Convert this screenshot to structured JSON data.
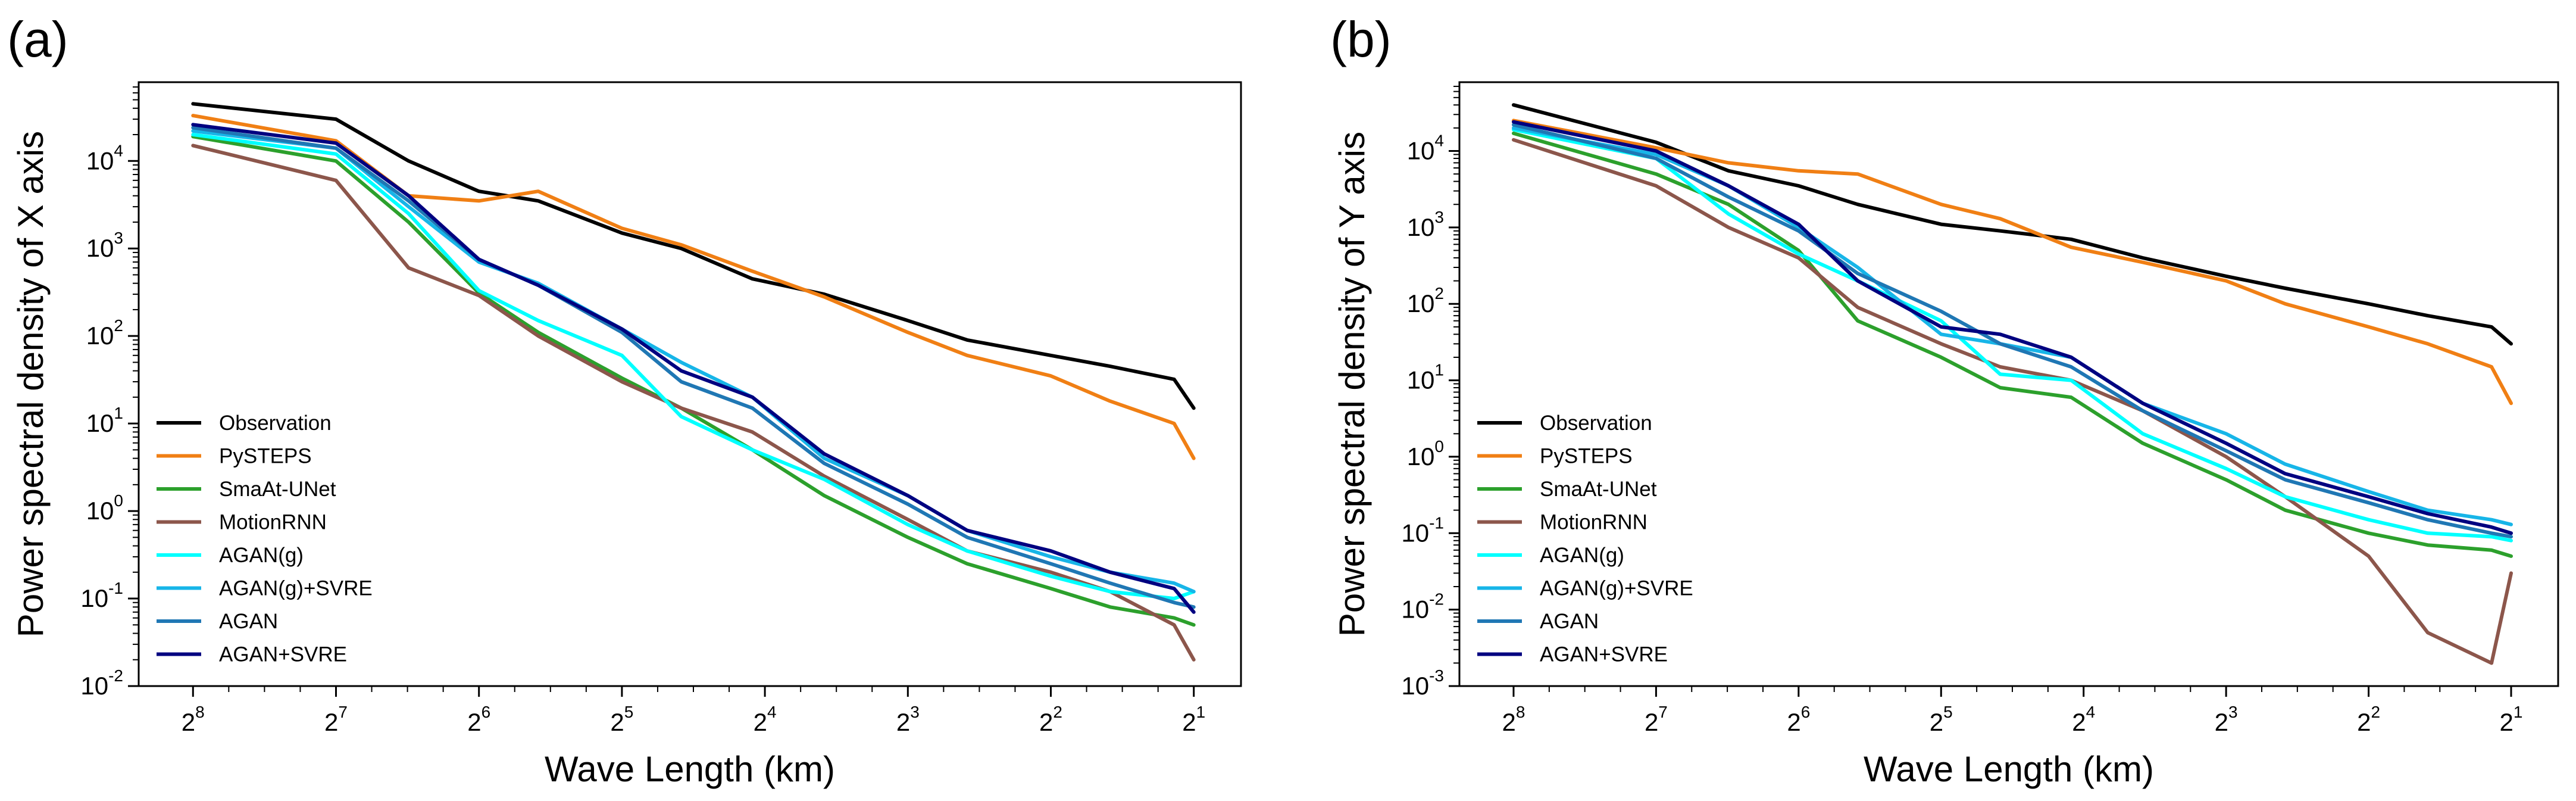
{
  "chart_data": [
    {
      "panel": "(a)",
      "type": "line",
      "xscale": "log2 (reversed)",
      "yscale": "log10",
      "xlabel": "Wave Length (km)",
      "ylabel": "Power spectral density of X axis",
      "x_ticks": [
        {
          "base": "2",
          "exp": "8",
          "value": 256
        },
        {
          "base": "2",
          "exp": "7",
          "value": 128
        },
        {
          "base": "2",
          "exp": "6",
          "value": 64
        },
        {
          "base": "2",
          "exp": "5",
          "value": 32
        },
        {
          "base": "2",
          "exp": "4",
          "value": 16
        },
        {
          "base": "2",
          "exp": "3",
          "value": 8
        },
        {
          "base": "2",
          "exp": "2",
          "value": 4
        },
        {
          "base": "2",
          "exp": "1",
          "value": 2
        }
      ],
      "y_ticks": [
        {
          "base": "10",
          "exp": "4",
          "value": 10000
        },
        {
          "base": "10",
          "exp": "3",
          "value": 1000
        },
        {
          "base": "10",
          "exp": "2",
          "value": 100
        },
        {
          "base": "10",
          "exp": "1",
          "value": 10
        },
        {
          "base": "10",
          "exp": "0",
          "value": 1
        },
        {
          "base": "10",
          "exp": "-1",
          "value": 0.1
        },
        {
          "base": "10",
          "exp": "-2",
          "value": 0.01
        }
      ],
      "legend_location": "lower-left",
      "x": [
        256,
        128,
        90,
        64,
        48,
        32,
        24,
        17,
        12,
        8,
        6,
        4,
        3,
        2.2,
        2
      ],
      "series": [
        {
          "name": "Observation",
          "color": "#000000",
          "values": [
            45000,
            30000,
            10000,
            4500,
            3500,
            1500,
            1000,
            450,
            300,
            150,
            90,
            60,
            45,
            32,
            15
          ]
        },
        {
          "name": "PySTEPS",
          "color": "#f07f14",
          "values": [
            33000,
            17000,
            4000,
            3500,
            4500,
            1700,
            1100,
            550,
            280,
            110,
            60,
            35,
            18,
            10,
            4
          ]
        },
        {
          "name": "SmaAt-UNet",
          "color": "#2ca02c",
          "values": [
            19000,
            10000,
            2000,
            310,
            110,
            33,
            15,
            5,
            1.5,
            0.5,
            0.25,
            0.13,
            0.08,
            0.06,
            0.05
          ]
        },
        {
          "name": "MotionRNN",
          "color": "#8c564b",
          "values": [
            15000,
            6000,
            600,
            290,
            100,
            30,
            15,
            8,
            2.5,
            0.8,
            0.35,
            0.2,
            0.12,
            0.05,
            0.02
          ]
        },
        {
          "name": "AGAN(g)",
          "color": "#00ffff",
          "values": [
            20000,
            12000,
            2500,
            330,
            150,
            60,
            12,
            5,
            2.3,
            0.7,
            0.35,
            0.18,
            0.12,
            0.1,
            0.12
          ]
        },
        {
          "name": "AGAN(g)+SVRE",
          "color": "#17b5e8",
          "values": [
            22000,
            14000,
            3000,
            700,
            400,
            120,
            50,
            20,
            4,
            1.5,
            0.6,
            0.3,
            0.2,
            0.15,
            0.12
          ]
        },
        {
          "name": "AGAN",
          "color": "#1f77b4",
          "values": [
            24000,
            14000,
            3500,
            750,
            380,
            110,
            30,
            15,
            3.5,
            1.2,
            0.5,
            0.25,
            0.15,
            0.09,
            0.08
          ]
        },
        {
          "name": "AGAN+SVRE",
          "color": "#000080",
          "values": [
            26000,
            16000,
            4000,
            750,
            380,
            120,
            40,
            20,
            4.5,
            1.5,
            0.6,
            0.35,
            0.2,
            0.13,
            0.07
          ]
        }
      ]
    },
    {
      "panel": "(b)",
      "type": "line",
      "xscale": "log2 (reversed)",
      "yscale": "log10",
      "xlabel": "Wave Length (km)",
      "ylabel": "Power spectral density of Y axis",
      "x_ticks": [
        {
          "base": "2",
          "exp": "8",
          "value": 256
        },
        {
          "base": "2",
          "exp": "7",
          "value": 128
        },
        {
          "base": "2",
          "exp": "6",
          "value": 64
        },
        {
          "base": "2",
          "exp": "5",
          "value": 32
        },
        {
          "base": "2",
          "exp": "4",
          "value": 16
        },
        {
          "base": "2",
          "exp": "3",
          "value": 8
        },
        {
          "base": "2",
          "exp": "2",
          "value": 4
        },
        {
          "base": "2",
          "exp": "1",
          "value": 2
        }
      ],
      "y_ticks": [
        {
          "base": "10",
          "exp": "4",
          "value": 10000
        },
        {
          "base": "10",
          "exp": "3",
          "value": 1000
        },
        {
          "base": "10",
          "exp": "2",
          "value": 100
        },
        {
          "base": "10",
          "exp": "1",
          "value": 10
        },
        {
          "base": "10",
          "exp": "0",
          "value": 1
        },
        {
          "base": "10",
          "exp": "-1",
          "value": 0.1
        },
        {
          "base": "10",
          "exp": "-2",
          "value": 0.01
        },
        {
          "base": "10",
          "exp": "-3",
          "value": 0.001
        }
      ],
      "legend_location": "lower-left",
      "x": [
        256,
        128,
        90,
        64,
        48,
        32,
        24,
        17,
        12,
        8,
        6,
        4,
        3,
        2.2,
        2
      ],
      "series": [
        {
          "name": "Observation",
          "color": "#000000",
          "values": [
            40000,
            13000,
            5500,
            3500,
            2000,
            1100,
            900,
            700,
            400,
            230,
            160,
            100,
            70,
            50,
            30
          ]
        },
        {
          "name": "PySTEPS",
          "color": "#f07f14",
          "values": [
            25000,
            11000,
            7000,
            5500,
            5000,
            2000,
            1300,
            550,
            350,
            200,
            100,
            50,
            30,
            15,
            5
          ]
        },
        {
          "name": "SmaAt-UNet",
          "color": "#2ca02c",
          "values": [
            17000,
            5000,
            2000,
            500,
            60,
            20,
            8,
            6,
            1.5,
            0.5,
            0.2,
            0.1,
            0.07,
            0.06,
            0.05
          ]
        },
        {
          "name": "MotionRNN",
          "color": "#8c564b",
          "values": [
            14000,
            3500,
            1000,
            400,
            90,
            30,
            15,
            10,
            4,
            1,
            0.3,
            0.05,
            0.005,
            0.002,
            0.03
          ]
        },
        {
          "name": "AGAN(g)",
          "color": "#00ffff",
          "values": [
            19000,
            8000,
            1500,
            450,
            200,
            60,
            12,
            10,
            2,
            0.7,
            0.3,
            0.15,
            0.1,
            0.09,
            0.08
          ]
        },
        {
          "name": "AGAN(g)+SVRE",
          "color": "#17b5e8",
          "values": [
            20000,
            9000,
            3500,
            1000,
            300,
            40,
            30,
            20,
            5,
            2,
            0.8,
            0.35,
            0.2,
            0.15,
            0.13
          ]
        },
        {
          "name": "AGAN",
          "color": "#1f77b4",
          "values": [
            22000,
            8000,
            2500,
            900,
            250,
            80,
            30,
            15,
            4,
            1.2,
            0.5,
            0.25,
            0.15,
            0.1,
            0.09
          ]
        },
        {
          "name": "AGAN+SVRE",
          "color": "#000080",
          "values": [
            24000,
            10000,
            3500,
            1100,
            200,
            50,
            40,
            20,
            5,
            1.5,
            0.6,
            0.3,
            0.18,
            0.12,
            0.1
          ]
        }
      ]
    }
  ]
}
